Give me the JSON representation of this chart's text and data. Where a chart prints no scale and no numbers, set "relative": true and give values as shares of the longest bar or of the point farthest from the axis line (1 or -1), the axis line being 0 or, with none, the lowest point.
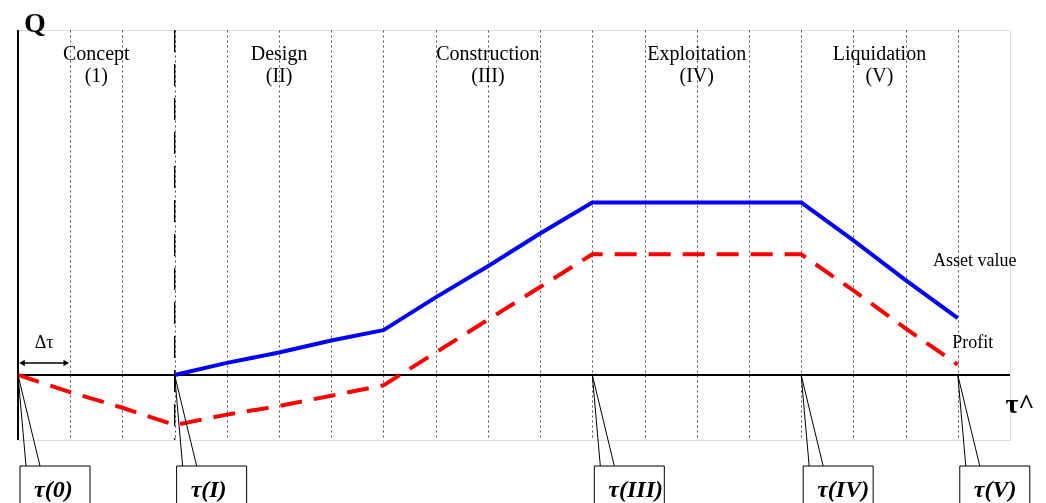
{
  "chart_data": {
    "type": "line",
    "relative": true,
    "xlabel": "τ^",
    "categories": [
      null,
      null,
      null,
      null,
      null,
      null,
      null,
      null,
      null,
      null,
      null,
      null,
      null,
      null,
      null,
      null,
      null,
      null,
      null
    ],
    "grid": "x",
    "marker": "none",
    "series": [
      {
        "name": "Asset value",
        "color": "#0000ff",
        "line_style": "solid",
        "values": [
          null,
          null,
          null,
          0,
          0.07,
          0.13,
          0.2,
          0.26,
          0.45,
          0.63,
          0.82,
          1,
          1,
          1,
          1,
          1,
          0.78,
          0.55,
          0.33
        ]
      },
      {
        "name": "Profit",
        "color": "#ff0000",
        "line_style": "dashed",
        "values": [
          0,
          -0.1,
          -0.19,
          -0.29,
          -0.23,
          -0.18,
          -0.12,
          -0.06,
          0.13,
          0.32,
          0.51,
          0.7,
          0.7,
          0.7,
          0.7,
          0.7,
          0.49,
          0.27,
          0.06
        ]
      }
    ],
    "ref_lines": [
      {
        "axis": "x",
        "line_style": "dashed",
        "color": "#000000"
      }
    ],
    "annotations": [
      "Concept\n(1)",
      "Design\n(II)",
      "Construction\n(III)",
      "Exploitation\n(IV)",
      "Liquidation\n(V)",
      "Δτ",
      "τ(0)",
      "τ(I)",
      "τ(III)",
      "τ(IV)",
      "τ(V)",
      "Q"
    ]
  }
}
